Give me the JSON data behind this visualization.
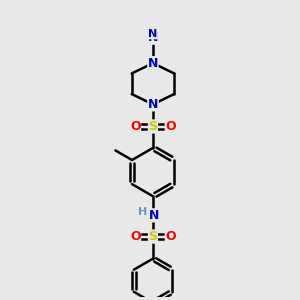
{
  "bg_color": "#e8e8e8",
  "bond_color": "#000000",
  "bond_width": 1.8,
  "atom_colors": {
    "N": "#0000cc",
    "S": "#cccc00",
    "O": "#ff0000",
    "C": "#000000",
    "H": "#6699aa"
  },
  "font_size": 9
}
